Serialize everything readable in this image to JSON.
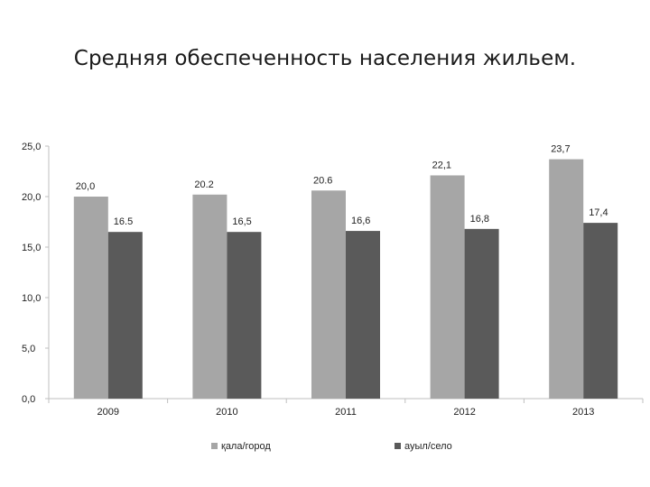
{
  "slide": {
    "title": "Средняя обеспеченность населения жильем."
  },
  "chart_data": {
    "type": "bar",
    "categories": [
      "2009",
      "2010",
      "2011",
      "2012",
      "2013"
    ],
    "series": [
      {
        "name": "қала/город",
        "color": "#a6a6a6",
        "values": [
          20.0,
          20.2,
          20.6,
          22.1,
          23.7
        ],
        "labels": [
          "20,0",
          "20.2",
          "20.6",
          "22,1",
          "23,7"
        ]
      },
      {
        "name": "ауыл/село",
        "color": "#5a5a5a",
        "values": [
          16.5,
          16.5,
          16.6,
          16.8,
          17.4
        ],
        "labels": [
          "16.5",
          "16,5",
          "16,6",
          "16,8",
          "17,4"
        ]
      }
    ],
    "ylim": [
      0,
      25
    ],
    "yticks": [
      "0,0",
      "5,0",
      "10,0",
      "15,0",
      "20,0",
      "25,0"
    ],
    "grid": false,
    "legend_position": "bottom"
  }
}
